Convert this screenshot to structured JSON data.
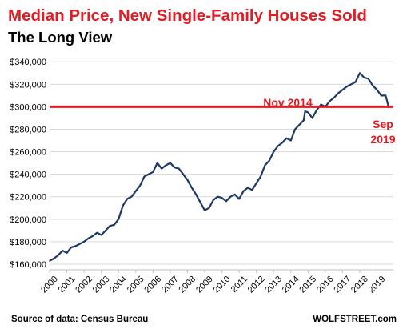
{
  "chart_data": {
    "type": "line",
    "title": "Median Price, New Single-Family Houses Sold",
    "subtitle": "The Long View",
    "xlabel": "",
    "ylabel": "",
    "ylim": [
      155000,
      348000
    ],
    "xlim": [
      2000.0,
      2019.95
    ],
    "y_ticks": [
      160000,
      180000,
      200000,
      220000,
      240000,
      260000,
      280000,
      300000,
      320000,
      340000
    ],
    "y_tick_labels": [
      "$160,000",
      "$180,000",
      "$200,000",
      "$220,000",
      "$240,000",
      "$260,000",
      "$280,000",
      "$300,000",
      "$320,000",
      "$340,000"
    ],
    "x_tick_labels": [
      "2000",
      "2001",
      "2002",
      "2003",
      "2004",
      "2005",
      "2006",
      "2007",
      "2008",
      "2009",
      "2010",
      "2011",
      "2012",
      "2013",
      "2014",
      "2015",
      "2016",
      "2017",
      "2018",
      "2019"
    ],
    "reference_line": {
      "value": 300000,
      "color": "#e31b23"
    },
    "annotations": [
      {
        "text": "Nov 2014",
        "color": "#e31b23"
      },
      {
        "text": "Sep",
        "color": "#e31b23"
      },
      {
        "text": "2019",
        "color": "#e31b23"
      }
    ],
    "series": [
      {
        "color": "#1f3864",
        "x": [
          2000.0,
          2000.25,
          2000.5,
          2000.75,
          2001.0,
          2001.25,
          2001.5,
          2001.75,
          2002.0,
          2002.25,
          2002.5,
          2002.75,
          2003.0,
          2003.25,
          2003.5,
          2003.75,
          2004.0,
          2004.25,
          2004.5,
          2004.75,
          2005.0,
          2005.25,
          2005.5,
          2005.75,
          2006.0,
          2006.25,
          2006.5,
          2006.75,
          2007.0,
          2007.25,
          2007.5,
          2007.75,
          2008.0,
          2008.25,
          2008.5,
          2008.75,
          2009.0,
          2009.25,
          2009.5,
          2009.75,
          2010.0,
          2010.25,
          2010.5,
          2010.75,
          2011.0,
          2011.25,
          2011.5,
          2011.75,
          2012.0,
          2012.25,
          2012.5,
          2012.75,
          2013.0,
          2013.25,
          2013.5,
          2013.75,
          2014.0,
          2014.25,
          2014.5,
          2014.75,
          2014.83,
          2015.0,
          2015.25,
          2015.5,
          2015.75,
          2016.0,
          2016.25,
          2016.5,
          2016.75,
          2017.0,
          2017.25,
          2017.5,
          2017.75,
          2018.0,
          2018.25,
          2018.5,
          2018.75,
          2019.0,
          2019.25,
          2019.5,
          2019.67
        ],
        "values": [
          163000,
          165000,
          168000,
          172000,
          170000,
          175000,
          176000,
          178000,
          180000,
          183000,
          185000,
          188000,
          186000,
          190000,
          194000,
          195000,
          200000,
          212000,
          218000,
          220000,
          225000,
          230000,
          238000,
          240000,
          242000,
          250000,
          245000,
          248000,
          250000,
          246000,
          245000,
          240000,
          235000,
          228000,
          222000,
          215000,
          208000,
          210000,
          217000,
          220000,
          219000,
          216000,
          220000,
          222000,
          218000,
          225000,
          228000,
          226000,
          232000,
          238000,
          248000,
          252000,
          260000,
          265000,
          268000,
          272000,
          270000,
          280000,
          284000,
          288000,
          296000,
          295000,
          290000,
          297000,
          302000,
          300000,
          305000,
          308000,
          312000,
          315000,
          318000,
          320000,
          322000,
          330000,
          326000,
          325000,
          319000,
          315000,
          310000,
          310000,
          300000
        ]
      }
    ]
  },
  "footer": {
    "source": "Source of data: Census Bureau",
    "brand": "WOLFSTREET.com"
  }
}
